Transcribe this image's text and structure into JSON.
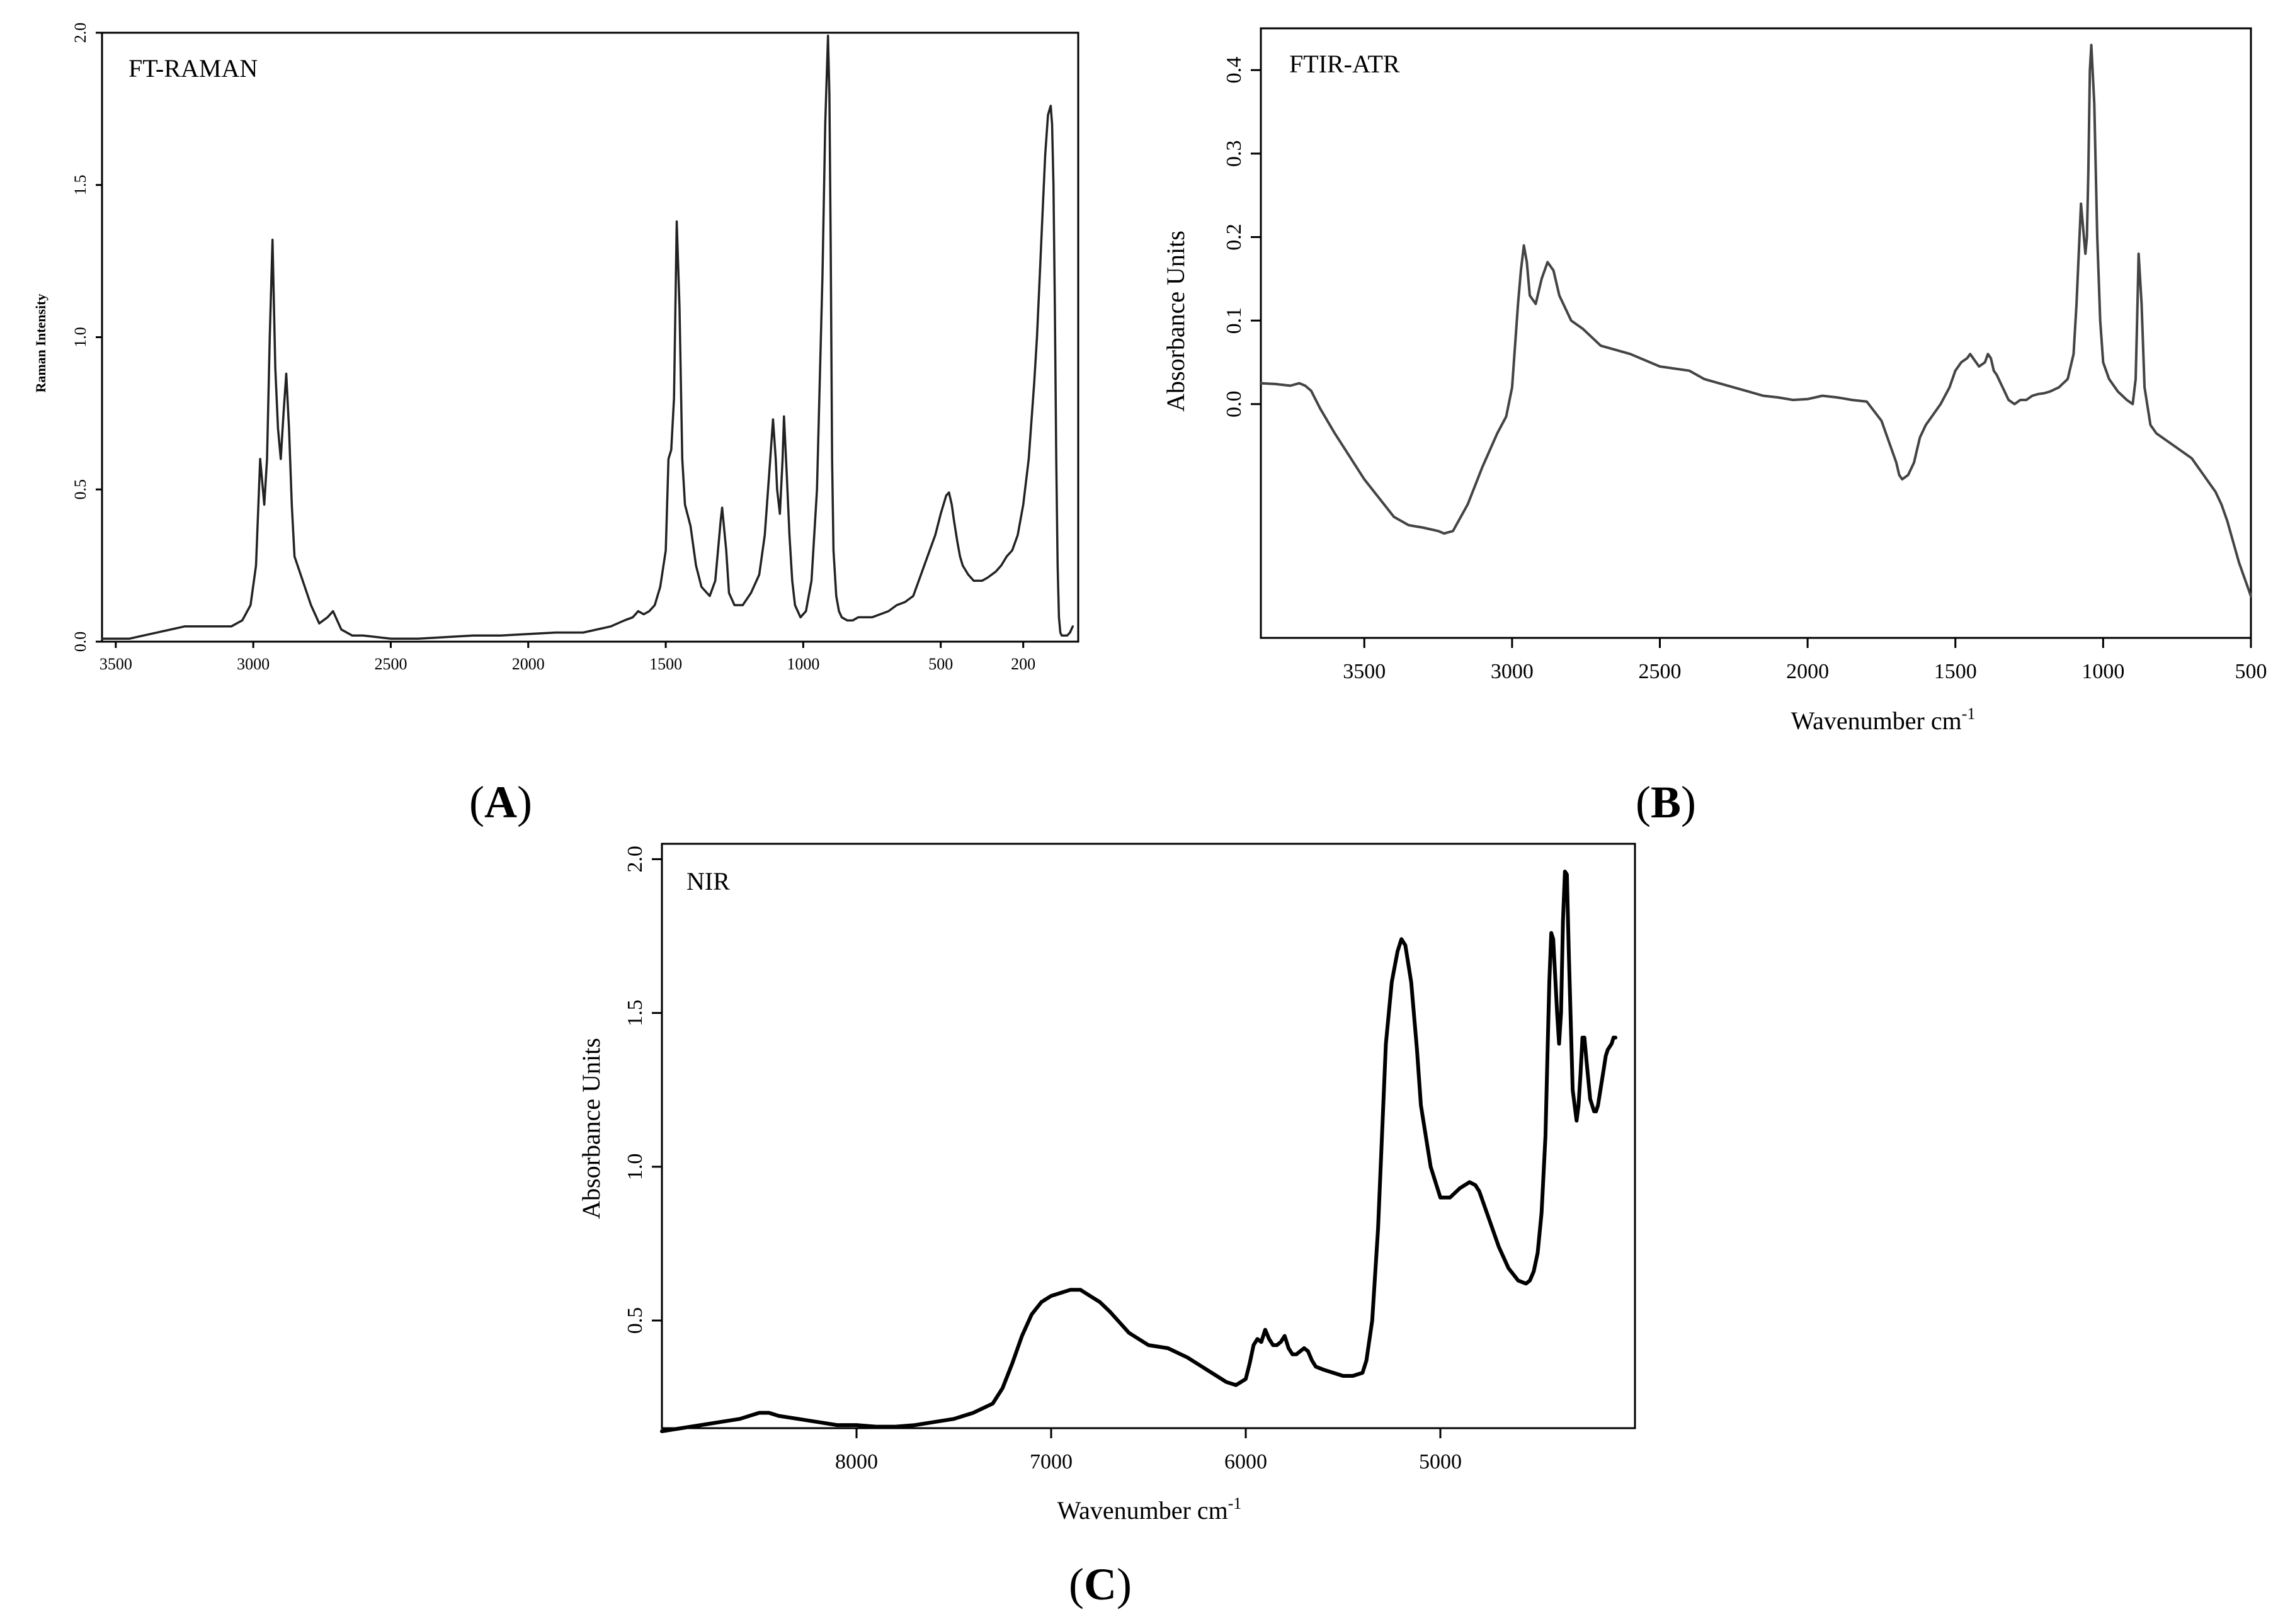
{
  "chart_data": [
    {
      "id": "A",
      "type": "line",
      "title": "FT-RAMAN",
      "panel_label": "A",
      "xlabel": "",
      "ylabel": "Raman Intensity",
      "xlim": [
        3550,
        0
      ],
      "ylim": [
        0,
        2.0
      ],
      "xticks": [
        3500,
        3000,
        2500,
        2000,
        1500,
        1000,
        500,
        200
      ],
      "yticks": [
        0.0,
        0.5,
        1.0,
        1.5,
        2.0
      ],
      "ytick_labels": [
        "0.0",
        "0.5",
        "1.0",
        "1.5",
        "2.0"
      ],
      "color": "#222222",
      "x": [
        3550,
        3450,
        3400,
        3300,
        3250,
        3150,
        3080,
        3040,
        3010,
        2990,
        2975,
        2960,
        2950,
        2940,
        2930,
        2920,
        2910,
        2900,
        2890,
        2880,
        2870,
        2860,
        2850,
        2820,
        2790,
        2760,
        2730,
        2710,
        2680,
        2640,
        2600,
        2500,
        2400,
        2300,
        2200,
        2100,
        2000,
        1900,
        1800,
        1700,
        1650,
        1620,
        1600,
        1580,
        1560,
        1540,
        1520,
        1500,
        1490,
        1480,
        1470,
        1460,
        1450,
        1440,
        1430,
        1410,
        1390,
        1370,
        1340,
        1320,
        1300,
        1295,
        1280,
        1270,
        1250,
        1220,
        1190,
        1160,
        1140,
        1120,
        1110,
        1100,
        1095,
        1085,
        1075,
        1070,
        1060,
        1050,
        1040,
        1030,
        1010,
        990,
        970,
        950,
        930,
        920,
        910,
        905,
        900,
        895,
        890,
        880,
        870,
        860,
        840,
        820,
        800,
        780,
        750,
        720,
        690,
        660,
        630,
        600,
        580,
        560,
        540,
        520,
        500,
        480,
        470,
        460,
        452,
        440,
        430,
        420,
        400,
        380,
        350,
        330,
        300,
        280,
        260,
        240,
        220,
        200,
        180,
        160,
        150,
        140,
        130,
        120,
        110,
        100,
        95,
        90,
        85,
        80,
        75,
        70,
        65,
        60,
        50,
        40,
        30,
        20
      ],
      "y": [
        0.01,
        0.01,
        0.02,
        0.04,
        0.05,
        0.05,
        0.05,
        0.07,
        0.12,
        0.25,
        0.6,
        0.45,
        0.6,
        1.0,
        1.32,
        0.9,
        0.7,
        0.6,
        0.75,
        0.88,
        0.7,
        0.45,
        0.28,
        0.2,
        0.12,
        0.06,
        0.08,
        0.1,
        0.04,
        0.02,
        0.02,
        0.01,
        0.01,
        0.015,
        0.02,
        0.02,
        0.025,
        0.03,
        0.03,
        0.05,
        0.07,
        0.08,
        0.1,
        0.09,
        0.1,
        0.12,
        0.18,
        0.3,
        0.6,
        0.63,
        0.8,
        1.38,
        1.1,
        0.6,
        0.45,
        0.38,
        0.25,
        0.18,
        0.15,
        0.2,
        0.4,
        0.44,
        0.3,
        0.16,
        0.12,
        0.12,
        0.16,
        0.22,
        0.35,
        0.6,
        0.73,
        0.6,
        0.5,
        0.42,
        0.6,
        0.74,
        0.55,
        0.35,
        0.2,
        0.12,
        0.08,
        0.1,
        0.2,
        0.5,
        1.2,
        1.7,
        1.99,
        1.8,
        1.3,
        0.6,
        0.3,
        0.15,
        0.1,
        0.08,
        0.07,
        0.07,
        0.08,
        0.08,
        0.08,
        0.09,
        0.1,
        0.12,
        0.13,
        0.15,
        0.2,
        0.25,
        0.3,
        0.35,
        0.42,
        0.48,
        0.49,
        0.45,
        0.4,
        0.33,
        0.28,
        0.25,
        0.22,
        0.2,
        0.2,
        0.21,
        0.23,
        0.25,
        0.28,
        0.3,
        0.35,
        0.45,
        0.6,
        0.85,
        1.0,
        1.2,
        1.4,
        1.6,
        1.73,
        1.76,
        1.7,
        1.5,
        1.1,
        0.6,
        0.25,
        0.08,
        0.03,
        0.02,
        0.02,
        0.02,
        0.03,
        0.05
      ]
    },
    {
      "id": "B",
      "type": "line",
      "title": "FTIR-ATR",
      "panel_label": "B",
      "xlabel": "Wavenumber cm",
      "xlabel_superscript": "-1",
      "ylabel": "Absorbance Units",
      "xlim": [
        3850,
        500
      ],
      "ylim": [
        -0.28,
        0.45
      ],
      "xticks": [
        3500,
        3000,
        2500,
        2000,
        1500,
        1000,
        500
      ],
      "yticks": [
        0.0,
        0.1,
        0.2,
        0.3,
        0.4
      ],
      "ytick_labels": [
        "0.0",
        "0.1",
        "0.2",
        "0.3",
        "0.4"
      ],
      "color": "#444444",
      "x": [
        3850,
        3800,
        3750,
        3720,
        3700,
        3680,
        3650,
        3600,
        3500,
        3400,
        3350,
        3300,
        3250,
        3230,
        3200,
        3150,
        3100,
        3050,
        3020,
        3000,
        2990,
        2980,
        2970,
        2960,
        2950,
        2940,
        2920,
        2900,
        2880,
        2860,
        2840,
        2800,
        2760,
        2700,
        2600,
        2500,
        2400,
        2350,
        2300,
        2250,
        2200,
        2150,
        2100,
        2050,
        2000,
        1950,
        1900,
        1850,
        1800,
        1750,
        1720,
        1700,
        1690,
        1680,
        1660,
        1640,
        1630,
        1620,
        1600,
        1580,
        1550,
        1520,
        1500,
        1480,
        1460,
        1450,
        1440,
        1420,
        1400,
        1390,
        1380,
        1370,
        1360,
        1340,
        1320,
        1300,
        1280,
        1260,
        1240,
        1220,
        1200,
        1180,
        1150,
        1120,
        1100,
        1090,
        1080,
        1075,
        1070,
        1060,
        1055,
        1050,
        1045,
        1040,
        1030,
        1020,
        1010,
        1000,
        980,
        950,
        920,
        900,
        890,
        885,
        880,
        870,
        860,
        840,
        820,
        800,
        780,
        760,
        740,
        720,
        700,
        680,
        660,
        640,
        620,
        600,
        580,
        560,
        540,
        520,
        500
      ],
      "y": [
        0.025,
        0.024,
        0.022,
        0.025,
        0.022,
        0.016,
        -0.005,
        -0.035,
        -0.09,
        -0.135,
        -0.145,
        -0.148,
        -0.152,
        -0.155,
        -0.152,
        -0.12,
        -0.075,
        -0.035,
        -0.015,
        0.02,
        0.07,
        0.12,
        0.16,
        0.19,
        0.17,
        0.13,
        0.12,
        0.15,
        0.17,
        0.16,
        0.13,
        0.1,
        0.09,
        0.07,
        0.06,
        0.045,
        0.04,
        0.03,
        0.025,
        0.02,
        0.015,
        0.01,
        0.008,
        0.005,
        0.006,
        0.01,
        0.008,
        0.005,
        0.003,
        -0.02,
        -0.05,
        -0.07,
        -0.085,
        -0.09,
        -0.085,
        -0.07,
        -0.055,
        -0.04,
        -0.025,
        -0.015,
        0.0,
        0.02,
        0.04,
        0.05,
        0.055,
        0.06,
        0.055,
        0.045,
        0.05,
        0.06,
        0.055,
        0.04,
        0.035,
        0.02,
        0.005,
        0.0,
        0.005,
        0.005,
        0.01,
        0.012,
        0.013,
        0.015,
        0.02,
        0.03,
        0.06,
        0.12,
        0.2,
        0.24,
        0.22,
        0.18,
        0.2,
        0.28,
        0.4,
        0.43,
        0.36,
        0.2,
        0.1,
        0.05,
        0.03,
        0.015,
        0.005,
        0.0,
        0.03,
        0.1,
        0.18,
        0.12,
        0.02,
        -0.025,
        -0.035,
        -0.04,
        -0.045,
        -0.05,
        -0.055,
        -0.06,
        -0.065,
        -0.075,
        -0.085,
        -0.095,
        -0.105,
        -0.12,
        -0.14,
        -0.165,
        -0.19,
        -0.21,
        -0.23
      ]
    },
    {
      "id": "C",
      "type": "line",
      "title": "NIR",
      "panel_label": "C",
      "xlabel": "Wavenumber cm",
      "xlabel_superscript": "-1",
      "ylabel": "Absorbance Units",
      "xlim": [
        9000,
        4000
      ],
      "ylim": [
        0.15,
        2.05
      ],
      "xticks": [
        8000,
        7000,
        6000,
        5000
      ],
      "yticks": [
        0.5,
        1.0,
        1.5,
        2.0
      ],
      "ytick_labels": [
        "0.5",
        "1.0",
        "1.5",
        "2.0"
      ],
      "color": "#000000",
      "x": [
        9000,
        8900,
        8800,
        8700,
        8600,
        8500,
        8450,
        8400,
        8300,
        8200,
        8100,
        8000,
        7900,
        7800,
        7700,
        7600,
        7500,
        7400,
        7300,
        7250,
        7200,
        7150,
        7100,
        7050,
        7000,
        6950,
        6900,
        6850,
        6800,
        6750,
        6700,
        6600,
        6500,
        6400,
        6300,
        6200,
        6100,
        6050,
        6000,
        5980,
        5960,
        5940,
        5920,
        5900,
        5880,
        5860,
        5840,
        5820,
        5800,
        5780,
        5760,
        5740,
        5720,
        5700,
        5680,
        5660,
        5640,
        5600,
        5550,
        5500,
        5450,
        5400,
        5380,
        5350,
        5320,
        5300,
        5280,
        5250,
        5220,
        5200,
        5180,
        5150,
        5120,
        5100,
        5050,
        5000,
        4950,
        4900,
        4850,
        4820,
        4800,
        4750,
        4700,
        4650,
        4600,
        4560,
        4540,
        4520,
        4500,
        4480,
        4460,
        4450,
        4440,
        4430,
        4420,
        4400,
        4390,
        4380,
        4370,
        4360,
        4350,
        4340,
        4320,
        4300,
        4290,
        4280,
        4270,
        4260,
        4250,
        4230,
        4210,
        4200,
        4190,
        4180,
        4170,
        4160,
        4150,
        4140,
        4120,
        4110,
        4100
      ],
      "y": [
        0.14,
        0.15,
        0.16,
        0.17,
        0.18,
        0.2,
        0.2,
        0.19,
        0.18,
        0.17,
        0.16,
        0.16,
        0.155,
        0.155,
        0.16,
        0.17,
        0.18,
        0.2,
        0.23,
        0.28,
        0.36,
        0.45,
        0.52,
        0.56,
        0.58,
        0.59,
        0.6,
        0.6,
        0.58,
        0.56,
        0.53,
        0.46,
        0.42,
        0.41,
        0.38,
        0.34,
        0.3,
        0.29,
        0.31,
        0.36,
        0.42,
        0.44,
        0.43,
        0.47,
        0.44,
        0.42,
        0.42,
        0.43,
        0.45,
        0.41,
        0.39,
        0.39,
        0.4,
        0.41,
        0.4,
        0.37,
        0.35,
        0.34,
        0.33,
        0.32,
        0.32,
        0.33,
        0.37,
        0.5,
        0.8,
        1.1,
        1.4,
        1.6,
        1.7,
        1.74,
        1.72,
        1.6,
        1.38,
        1.2,
        1.0,
        0.9,
        0.9,
        0.93,
        0.95,
        0.94,
        0.92,
        0.83,
        0.74,
        0.67,
        0.63,
        0.62,
        0.63,
        0.66,
        0.72,
        0.85,
        1.1,
        1.35,
        1.6,
        1.76,
        1.74,
        1.5,
        1.4,
        1.5,
        1.8,
        1.96,
        1.95,
        1.7,
        1.25,
        1.15,
        1.2,
        1.3,
        1.42,
        1.42,
        1.35,
        1.22,
        1.18,
        1.18,
        1.2,
        1.24,
        1.28,
        1.32,
        1.36,
        1.38,
        1.4,
        1.42,
        1.42
      ]
    }
  ]
}
